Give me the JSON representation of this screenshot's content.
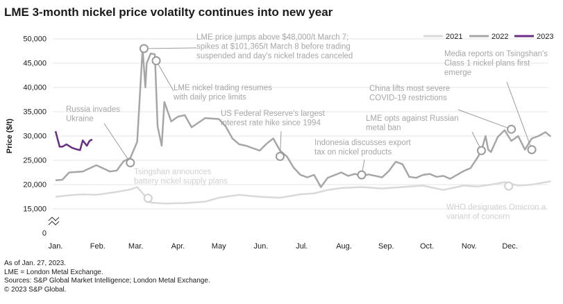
{
  "title": "LME 3-month nickel price volatilty continues into new year",
  "footnotes": [
    "As of Jan. 27, 2023.",
    "LME = London Metal Exchange.",
    "Sources: S&P Global Market Intelligence; London Metal Exchange.",
    "© 2023 S&P Global."
  ],
  "chart_data": {
    "type": "line",
    "ylabel": "Price ($/t)",
    "xlabel": "",
    "y_ticks": [
      "50,000",
      "45,000",
      "40,000",
      "35,000",
      "30,000",
      "25,000",
      "20,000",
      "15,000",
      "0"
    ],
    "y_tick_values": [
      50000,
      45000,
      40000,
      35000,
      30000,
      25000,
      20000,
      15000,
      0
    ],
    "axis_break": true,
    "x_ticks": [
      "Jan.",
      "Feb.",
      "Mar.",
      "Apr.",
      "May",
      "Jun.",
      "Jul.",
      "Aug.",
      "Sep.",
      "Oct.",
      "Nov.",
      "Dec."
    ],
    "legend": [
      "2021",
      "2022",
      "2023"
    ],
    "legend_position": "top-right",
    "colors": {
      "2021": "#d9d9d9",
      "2022": "#a6a6a6",
      "2023": "#6b2c83",
      "annotation_text": "#a6a6a6",
      "footnote_text": "#1a1a1a"
    },
    "series": [
      {
        "name": "2021",
        "day_of_year": [
          0,
          10,
          20,
          30,
          45,
          55,
          60,
          70,
          80,
          95,
          110,
          120,
          135,
          150,
          165,
          180,
          190,
          200,
          210,
          225,
          240,
          255,
          270,
          285,
          300,
          310,
          320,
          330,
          340,
          350,
          364
        ],
        "values": [
          17500,
          17800,
          18000,
          17900,
          18500,
          19000,
          19500,
          16300,
          16100,
          16200,
          16500,
          17300,
          17900,
          17500,
          17300,
          18000,
          18200,
          18900,
          19300,
          19500,
          19200,
          19500,
          19800,
          18900,
          19800,
          19600,
          20000,
          20500,
          19800,
          20000,
          20700
        ]
      },
      {
        "name": "2022",
        "day_of_year": [
          0,
          5,
          10,
          20,
          30,
          40,
          45,
          50,
          55,
          60,
          64,
          66,
          67,
          70,
          73,
          75,
          78,
          80,
          85,
          90,
          95,
          100,
          110,
          120,
          125,
          130,
          135,
          140,
          145,
          150,
          155,
          160,
          165,
          170,
          175,
          180,
          185,
          190,
          195,
          200,
          210,
          215,
          220,
          225,
          230,
          240,
          245,
          250,
          255,
          260,
          265,
          270,
          275,
          280,
          285,
          290,
          300,
          305,
          310,
          313,
          316,
          318,
          320,
          325,
          330,
          335,
          340,
          345,
          350,
          355,
          360,
          364
        ],
        "values": [
          20900,
          21000,
          22500,
          22700,
          24000,
          22700,
          22900,
          24800,
          25500,
          28800,
          48000,
          40000,
          45000,
          47000,
          46800,
          32000,
          28000,
          37000,
          33000,
          34000,
          34300,
          31800,
          33700,
          33500,
          32000,
          29500,
          28300,
          28000,
          27500,
          27000,
          28400,
          29500,
          27000,
          25800,
          23500,
          22000,
          21500,
          22000,
          19500,
          21400,
          22500,
          21800,
          22200,
          21800,
          22100,
          21500,
          22800,
          24700,
          24200,
          21600,
          21400,
          22000,
          22200,
          21600,
          21800,
          21200,
          22800,
          23400,
          25500,
          27000,
          30000,
          27200,
          26700,
          29800,
          31200,
          29000,
          30000,
          27200,
          29500,
          30000,
          30800,
          29900
        ]
      },
      {
        "name": "2023",
        "day_of_year": [
          0,
          3,
          5,
          8,
          12,
          15,
          18,
          20,
          23,
          25,
          27
        ],
        "values": [
          31000,
          27800,
          27800,
          28300,
          27600,
          27300,
          27100,
          29100,
          28000,
          29000,
          29300
        ]
      }
    ],
    "annotations": [
      {
        "text": [
          "Russia invades",
          "Ukraine"
        ],
        "day": 55,
        "value": 24500,
        "marker_series": "2022"
      },
      {
        "text": [
          "LME price jumps above $48,000/t March 7;",
          "spikes at $101,365/t March 8 before trading",
          "suspended and day's nickel trades canceled"
        ],
        "day": 65,
        "value": 48000,
        "marker_series": "2022"
      },
      {
        "text": [
          "LME nickel trading resumes",
          "with daily price limits"
        ],
        "day": 74,
        "value": 45500,
        "marker_series": "2022"
      },
      {
        "text": [
          "Tsingshan announces",
          "battery nickel supply plans"
        ],
        "day": 68,
        "value": 17200,
        "marker_series": "2021"
      },
      {
        "text": [
          "US Federal Reserve's largest",
          "interest rate hike since 1994"
        ],
        "day": 165,
        "value": 25800,
        "marker_series": "2022"
      },
      {
        "text": [
          "Indonesia discusses export",
          "tax on nickel products"
        ],
        "day": 225,
        "value": 22000,
        "marker_series": "2022"
      },
      {
        "text": [
          "LME opts against Russian",
          "metal ban"
        ],
        "day": 313,
        "value": 27000,
        "marker_series": "2022"
      },
      {
        "text": [
          "China lifts most severe",
          "COVID-19 restrictions"
        ],
        "day": 335,
        "value": 31400,
        "marker_series": "2022"
      },
      {
        "text": [
          "Media reports on Tsingshan's",
          "Class 1 nickel plans first",
          "emerge"
        ],
        "day": 350,
        "value": 27200,
        "marker_series": "2022"
      },
      {
        "text": [
          "WHO designates Omicron a",
          "variant of concern"
        ],
        "day": 333,
        "value": 19700,
        "marker_series": "2021"
      }
    ]
  }
}
